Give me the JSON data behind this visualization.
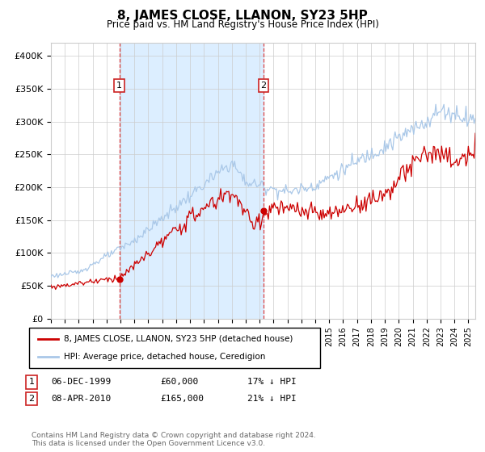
{
  "title": "8, JAMES CLOSE, LLANON, SY23 5HP",
  "subtitle": "Price paid vs. HM Land Registry's House Price Index (HPI)",
  "legend_line1": "8, JAMES CLOSE, LLANON, SY23 5HP (detached house)",
  "legend_line2": "HPI: Average price, detached house, Ceredigion",
  "annotation1_label": "1",
  "annotation1_date": "06-DEC-1999",
  "annotation1_price": "£60,000",
  "annotation1_hpi": "17% ↓ HPI",
  "annotation2_label": "2",
  "annotation2_date": "08-APR-2010",
  "annotation2_price": "£165,000",
  "annotation2_hpi": "21% ↓ HPI",
  "footer": "Contains HM Land Registry data © Crown copyright and database right 2024.\nThis data is licensed under the Open Government Licence v3.0.",
  "sale1_year": 1999.92,
  "sale1_price": 60000,
  "sale2_year": 2010.27,
  "sale2_price": 165000,
  "ylim": [
    0,
    420000
  ],
  "xlim_start": 1995.0,
  "xlim_end": 2025.5,
  "shading_start": 1999.92,
  "shading_end": 2010.27,
  "hpi_color": "#aac8e8",
  "price_color": "#cc0000",
  "shading_color": "#dceeff",
  "grid_color": "#cccccc",
  "background_color": "#ffffff",
  "yticks": [
    0,
    50000,
    100000,
    150000,
    200000,
    250000,
    300000,
    350000,
    400000
  ],
  "ytick_labels": [
    "£0",
    "£50K",
    "£100K",
    "£150K",
    "£200K",
    "£250K",
    "£300K",
    "£350K",
    "£400K"
  ]
}
